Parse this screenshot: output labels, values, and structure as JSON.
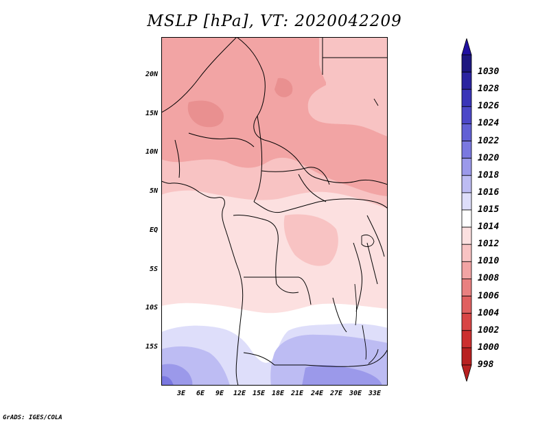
{
  "title": "MSLP [hPa], VT: 2020042209",
  "credit": "GrADS: IGES/COLA",
  "y_axis_labels": [
    "20N",
    "15N",
    "10N",
    "5N",
    "EQ",
    "5S",
    "10S",
    "15S"
  ],
  "x_axis_labels": [
    "3E",
    "6E",
    "9E",
    "12E",
    "15E",
    "18E",
    "21E",
    "24E",
    "27E",
    "30E",
    "33E"
  ],
  "colorbar": {
    "unit": "hPa",
    "labels": [
      "1030",
      "1028",
      "1026",
      "1024",
      "1022",
      "1020",
      "1018",
      "1016",
      "1015",
      "1014",
      "1012",
      "1010",
      "1008",
      "1006",
      "1004",
      "1002",
      "1000",
      "998"
    ],
    "colors": [
      "#1d1780",
      "#2a23a0",
      "#3a34b8",
      "#4c47c8",
      "#6260d5",
      "#7a78e0",
      "#9b99ea",
      "#bdbcf3",
      "#dedefa",
      "#ffffff",
      "#fce0e0",
      "#f8c3c3",
      "#f2a4a4",
      "#e98080",
      "#e06060",
      "#d84545",
      "#cc2f2f",
      "#b82020"
    ],
    "top_arrow_color": "#2010a0",
    "bottom_arrow_color": "#b82020"
  },
  "map_region": {
    "lon_range": [
      0,
      35
    ],
    "lat_range": [
      -20,
      25
    ]
  },
  "field_colors": {
    "p1008": "#f2a4a4",
    "p1010": "#f8c3c3",
    "p1012": "#fce0e0",
    "p1014": "#ffffff",
    "p1015": "#dedefa",
    "p1016": "#bdbcf3",
    "p1018": "#9b99ea",
    "p1020": "#7a78e0",
    "dark1008": "#e99090"
  }
}
